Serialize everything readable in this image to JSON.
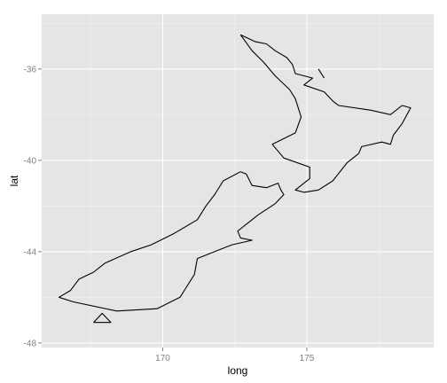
{
  "colors": {
    "panel_background": "#e5e5e5",
    "grid_major": "#ffffff",
    "grid_minor": "#f2f2f2",
    "outline": "#000000",
    "tick_label": "#7f7f7f"
  },
  "chart_data": {
    "type": "line",
    "xlabel": "long",
    "ylabel": "lat",
    "xlim": [
      165.8,
      179.4
    ],
    "ylim": [
      -48.2,
      -33.6
    ],
    "x_ticks": [
      170,
      175
    ],
    "y_ticks": [
      -36,
      -40,
      -44,
      -48
    ],
    "grid": true,
    "series": [
      {
        "points": [
          [
            172.7,
            -34.5
          ],
          [
            173.2,
            -34.8
          ],
          [
            173.6,
            -34.9
          ],
          [
            173.9,
            -35.2
          ],
          [
            174.3,
            -35.5
          ],
          [
            174.5,
            -35.8
          ],
          [
            174.6,
            -36.2
          ],
          [
            175.2,
            -36.4
          ],
          [
            174.9,
            -36.7
          ],
          [
            175.6,
            -37.0
          ],
          [
            175.9,
            -37.4
          ],
          [
            176.1,
            -37.6
          ],
          [
            177.2,
            -37.8
          ],
          [
            177.9,
            -38.0
          ],
          [
            178.3,
            -37.6
          ],
          [
            178.6,
            -37.7
          ],
          [
            178.3,
            -38.4
          ],
          [
            178.0,
            -38.9
          ],
          [
            177.9,
            -39.3
          ],
          [
            177.6,
            -39.2
          ],
          [
            176.9,
            -39.4
          ],
          [
            176.8,
            -39.7
          ],
          [
            176.4,
            -40.1
          ],
          [
            175.9,
            -40.9
          ],
          [
            175.4,
            -41.3
          ],
          [
            174.9,
            -41.4
          ],
          [
            174.6,
            -41.3
          ],
          [
            175.1,
            -40.8
          ],
          [
            175.1,
            -40.3
          ],
          [
            174.2,
            -39.9
          ],
          [
            173.8,
            -39.3
          ],
          [
            174.6,
            -38.8
          ],
          [
            174.8,
            -38.1
          ],
          [
            174.6,
            -37.3
          ],
          [
            174.4,
            -36.9
          ],
          [
            173.9,
            -36.3
          ],
          [
            173.5,
            -35.7
          ],
          [
            173.1,
            -35.2
          ],
          [
            172.7,
            -34.5
          ]
        ]
      },
      {
        "points": [
          [
            172.7,
            -40.5
          ],
          [
            172.9,
            -40.6
          ],
          [
            173.1,
            -41.1
          ],
          [
            173.6,
            -41.2
          ],
          [
            174.0,
            -41.0
          ],
          [
            174.1,
            -41.3
          ],
          [
            174.2,
            -41.5
          ],
          [
            173.9,
            -41.9
          ],
          [
            173.3,
            -42.4
          ],
          [
            172.8,
            -42.9
          ],
          [
            172.6,
            -43.1
          ],
          [
            172.7,
            -43.4
          ],
          [
            173.1,
            -43.5
          ],
          [
            172.4,
            -43.7
          ],
          [
            171.6,
            -44.1
          ],
          [
            171.2,
            -44.3
          ],
          [
            171.1,
            -45.0
          ],
          [
            170.8,
            -45.6
          ],
          [
            170.6,
            -46.0
          ],
          [
            169.8,
            -46.5
          ],
          [
            168.4,
            -46.6
          ],
          [
            166.9,
            -46.2
          ],
          [
            166.4,
            -46.0
          ],
          [
            166.8,
            -45.7
          ],
          [
            167.1,
            -45.2
          ],
          [
            167.6,
            -44.9
          ],
          [
            168.0,
            -44.5
          ],
          [
            168.9,
            -44.0
          ],
          [
            169.6,
            -43.7
          ],
          [
            170.4,
            -43.2
          ],
          [
            171.2,
            -42.6
          ],
          [
            171.5,
            -42.0
          ],
          [
            171.8,
            -41.5
          ],
          [
            172.1,
            -40.9
          ],
          [
            172.7,
            -40.5
          ]
        ]
      },
      {
        "points": [
          [
            167.6,
            -47.1
          ],
          [
            167.9,
            -46.7
          ],
          [
            168.2,
            -47.1
          ],
          [
            167.6,
            -47.1
          ]
        ]
      },
      {
        "points": [
          [
            175.4,
            -36.0
          ],
          [
            175.6,
            -36.4
          ]
        ]
      }
    ]
  }
}
